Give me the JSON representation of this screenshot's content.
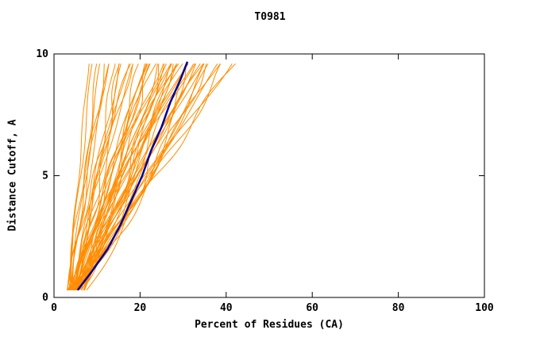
{
  "page": {
    "title": "T0981"
  },
  "chart_data": {
    "type": "line",
    "title": "T0981",
    "xlabel": "Percent of Residues (CA)",
    "ylabel": "Distance Cutoff, A",
    "xlim": [
      0,
      100
    ],
    "ylim": [
      0,
      10
    ],
    "x_ticks": [
      0,
      20,
      40,
      60,
      80,
      100
    ],
    "y_ticks": [
      0,
      5,
      10
    ],
    "grid": false,
    "legend_position": "none",
    "colors": {
      "model_lines": "#ff8c00",
      "highlight_line": "#000099",
      "axis": "#000000"
    },
    "y_start": 0.3,
    "y_end": 9.68,
    "highlight_series": {
      "name": "highlighted-model",
      "points": [
        [
          5.5,
          0.3
        ],
        [
          8.5,
          1
        ],
        [
          12.5,
          2
        ],
        [
          15.5,
          3
        ],
        [
          18,
          4
        ],
        [
          20.5,
          5
        ],
        [
          22.5,
          6
        ],
        [
          25,
          7
        ],
        [
          27,
          8
        ],
        [
          29.5,
          9
        ],
        [
          31,
          9.68
        ]
      ]
    },
    "model_curves_param_format": [
      "x_at_bottom",
      "x_at_top",
      "shape_exponent",
      "wiggle_amplitude",
      "wiggle_frequency"
    ],
    "model_curves": [
      [
        3.0,
        8,
        0.9,
        0.2,
        1.5
      ],
      [
        3.2,
        9,
        1.0,
        0.3,
        1.2
      ],
      [
        3.5,
        10,
        0.8,
        0.3,
        1.8
      ],
      [
        4.0,
        11,
        1.1,
        0.4,
        1.0
      ],
      [
        3.1,
        12,
        0.9,
        0.5,
        1.4
      ],
      [
        4.2,
        13,
        1.2,
        0.4,
        0.9
      ],
      [
        3.6,
        14,
        0.7,
        0.5,
        1.6
      ],
      [
        4.8,
        15,
        1.0,
        0.6,
        1.1
      ],
      [
        3.3,
        16,
        0.85,
        0.5,
        1.3
      ],
      [
        5.0,
        17,
        1.15,
        0.6,
        0.8
      ],
      [
        3.8,
        18,
        0.95,
        0.7,
        1.5
      ],
      [
        4.5,
        19,
        1.25,
        0.5,
        1.0
      ],
      [
        3.4,
        20,
        0.8,
        0.7,
        1.7
      ],
      [
        5.5,
        21,
        1.05,
        0.6,
        1.2
      ],
      [
        4.0,
        22,
        0.9,
        0.8,
        0.9
      ],
      [
        6.0,
        23,
        1.3,
        0.5,
        1.4
      ],
      [
        3.7,
        24,
        0.75,
        0.8,
        1.1
      ],
      [
        5.2,
        25,
        1.1,
        0.7,
        1.6
      ],
      [
        4.3,
        26,
        0.95,
        0.8,
        1.0
      ],
      [
        6.5,
        27,
        1.2,
        0.6,
        1.3
      ],
      [
        3.9,
        28,
        0.85,
        0.9,
        1.5
      ],
      [
        5.8,
        29,
        1.05,
        0.7,
        0.8
      ],
      [
        4.6,
        30,
        0.9,
        0.9,
        1.2
      ],
      [
        6.2,
        31,
        1.15,
        0.8,
        1.0
      ],
      [
        4.1,
        32,
        0.8,
        1.0,
        1.4
      ],
      [
        5.4,
        33,
        1.0,
        0.8,
        1.1
      ],
      [
        4.9,
        34,
        0.9,
        1.0,
        0.9
      ],
      [
        6.8,
        35,
        1.2,
        0.7,
        1.3
      ],
      [
        4.4,
        36,
        0.85,
        1.0,
        1.6
      ],
      [
        5.6,
        37,
        1.05,
        0.9,
        1.0
      ],
      [
        5.0,
        38,
        0.95,
        1.0,
        1.2
      ],
      [
        7.0,
        39,
        1.15,
        0.8,
        0.8
      ],
      [
        4.7,
        40,
        0.9,
        1.1,
        1.4
      ],
      [
        6.4,
        41,
        1.1,
        0.9,
        1.1
      ],
      [
        5.3,
        42,
        1.0,
        1.0,
        1.5
      ],
      [
        3.2,
        22,
        0.65,
        0.8,
        1.9
      ],
      [
        3.6,
        25,
        0.7,
        0.9,
        1.7
      ],
      [
        4.0,
        28,
        0.72,
        1.0,
        1.3
      ],
      [
        4.4,
        31,
        0.68,
        1.1,
        1.5
      ],
      [
        3.8,
        34,
        0.75,
        1.1,
        1.1
      ],
      [
        5.1,
        24,
        1.35,
        0.6,
        1.0
      ],
      [
        5.7,
        26,
        1.4,
        0.6,
        1.2
      ],
      [
        6.1,
        29,
        1.45,
        0.7,
        0.9
      ],
      [
        6.6,
        33,
        1.5,
        0.7,
        1.1
      ],
      [
        7.2,
        30,
        1.3,
        0.6,
        1.4
      ],
      [
        3.0,
        15,
        0.6,
        0.6,
        2.0
      ],
      [
        3.3,
        13,
        1.4,
        0.3,
        1.6
      ],
      [
        3.5,
        18,
        1.3,
        0.5,
        1.8
      ],
      [
        4.2,
        21,
        0.78,
        0.9,
        1.2
      ],
      [
        4.8,
        23,
        1.22,
        0.7,
        1.5
      ],
      [
        5.9,
        27,
        0.88,
        0.9,
        1.0
      ],
      [
        6.3,
        28,
        1.08,
        0.8,
        1.3
      ],
      [
        7.4,
        32,
        1.18,
        0.7,
        1.6
      ],
      [
        7.8,
        36,
        0.98,
        0.9,
        1.2
      ]
    ]
  }
}
